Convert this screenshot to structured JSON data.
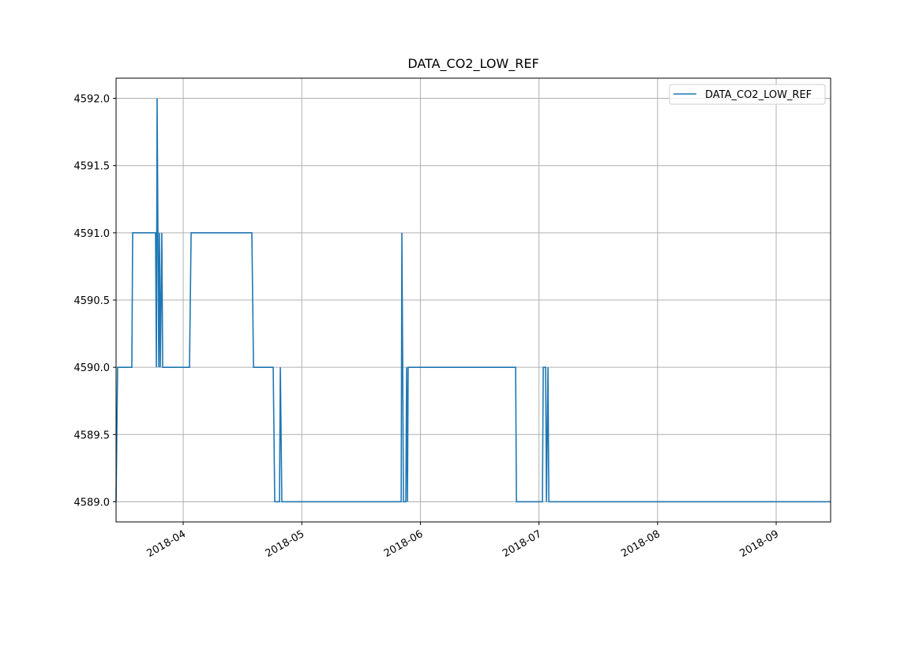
{
  "chart_data": {
    "type": "line",
    "title": "DATA_CO2_LOW_REF",
    "x": [
      3.434,
      3.447,
      3.567,
      3.574,
      3.767,
      3.774,
      3.78,
      3.787,
      3.794,
      3.8,
      3.807,
      3.82,
      3.827,
      4.053,
      4.067,
      4.579,
      4.593,
      4.759,
      4.772,
      4.812,
      4.819,
      4.832,
      5.838,
      5.844,
      5.851,
      5.857,
      5.877,
      5.884,
      5.891,
      5.897,
      6.803,
      6.81,
      7.029,
      7.036,
      7.056,
      7.063,
      7.076,
      7.083,
      9.459
    ],
    "series": [
      {
        "name": "DATA_CO2_LOW_REF",
        "color": "#1f77b4",
        "values": [
          4589,
          4590,
          4590,
          4591,
          4591,
          4590,
          4592,
          4591,
          4590,
          4591,
          4590,
          4591,
          4590,
          4590,
          4591,
          4591,
          4590,
          4590,
          4589,
          4589,
          4590,
          4589,
          4589,
          4591,
          4590,
          4589,
          4589,
          4590,
          4589,
          4590,
          4590,
          4589,
          4589,
          4590,
          4590,
          4589,
          4590,
          4589,
          4589
        ]
      }
    ],
    "xlim": [
      3.434,
      9.459
    ],
    "xticks": [
      {
        "value": 4,
        "label": "2018-04"
      },
      {
        "value": 5,
        "label": "2018-05"
      },
      {
        "value": 6,
        "label": "2018-06"
      },
      {
        "value": 7,
        "label": "2018-07"
      },
      {
        "value": 8,
        "label": "2018-08"
      },
      {
        "value": 9,
        "label": "2018-09"
      }
    ],
    "ylim": [
      4588.85,
      4592.15
    ],
    "yticks": [
      {
        "value": 4589,
        "label": "4589.0"
      },
      {
        "value": 4589.5,
        "label": "4589.5"
      },
      {
        "value": 4590,
        "label": "4590.0"
      },
      {
        "value": 4590.5,
        "label": "4590.5"
      },
      {
        "value": 4591,
        "label": "4591.0"
      },
      {
        "value": 4591.5,
        "label": "4591.5"
      },
      {
        "value": 4592,
        "label": "4592.0"
      }
    ],
    "grid": true,
    "legend": "upper right"
  }
}
